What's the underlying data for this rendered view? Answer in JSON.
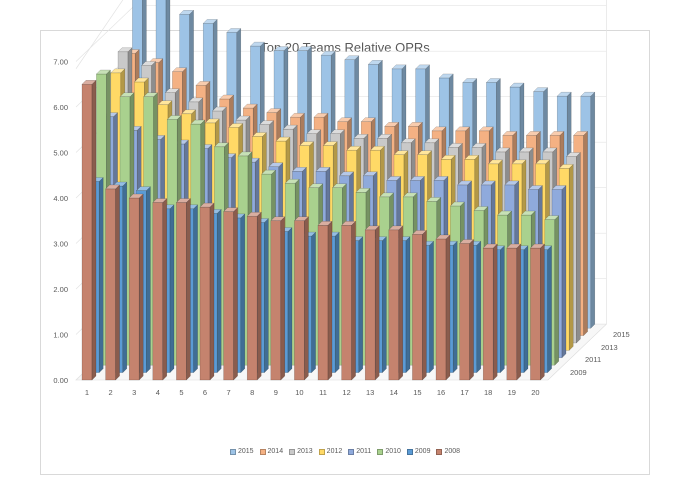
{
  "chart_data": {
    "type": "bar",
    "title": "Top 20 Teams Relative OPRs",
    "categories": [
      "1",
      "2",
      "3",
      "4",
      "5",
      "6",
      "7",
      "8",
      "9",
      "10",
      "11",
      "12",
      "13",
      "14",
      "15",
      "16",
      "17",
      "18",
      "19",
      "20"
    ],
    "y_tick_labels": [
      "0.00",
      "1.00",
      "2.00",
      "3.00",
      "4.00",
      "5.00",
      "6.00",
      "7.00"
    ],
    "ylim": [
      0,
      7.5
    ],
    "depth_axis_labels": [
      "2015",
      "2013",
      "2011",
      "2009"
    ],
    "grid": true,
    "legend_position": "bottom",
    "series": [
      {
        "name": "2015",
        "color": "#9dc3e6",
        "values": [
          7.9,
          7.7,
          6.9,
          6.7,
          6.5,
          6.2,
          6.1,
          6.1,
          6.0,
          5.9,
          5.8,
          5.7,
          5.7,
          5.5,
          5.4,
          5.4,
          5.3,
          5.2,
          5.1,
          5.1
        ]
      },
      {
        "name": "2014",
        "color": "#f4b183",
        "values": [
          6.2,
          6.0,
          5.8,
          5.5,
          5.2,
          5.0,
          4.9,
          4.8,
          4.8,
          4.7,
          4.7,
          4.6,
          4.6,
          4.5,
          4.5,
          4.5,
          4.4,
          4.4,
          4.4,
          4.4
        ]
      },
      {
        "name": "2013",
        "color": "#c9c9c9",
        "values": [
          6.4,
          6.1,
          5.5,
          5.3,
          5.1,
          4.9,
          4.8,
          4.7,
          4.6,
          4.6,
          4.5,
          4.5,
          4.4,
          4.4,
          4.3,
          4.3,
          4.2,
          4.2,
          4.2,
          4.1
        ]
      },
      {
        "name": "2012",
        "color": "#ffd966",
        "values": [
          6.1,
          5.9,
          5.4,
          5.2,
          5.0,
          4.9,
          4.7,
          4.6,
          4.5,
          4.5,
          4.4,
          4.4,
          4.3,
          4.3,
          4.2,
          4.2,
          4.1,
          4.1,
          4.1,
          4.0
        ]
      },
      {
        "name": "2011",
        "color": "#8faadc",
        "values": [
          5.3,
          5.0,
          4.8,
          4.7,
          4.6,
          4.4,
          4.3,
          4.2,
          4.1,
          4.1,
          4.0,
          4.0,
          3.9,
          3.9,
          3.9,
          3.8,
          3.8,
          3.8,
          3.7,
          3.7
        ]
      },
      {
        "name": "2010",
        "color": "#a9d18e",
        "values": [
          6.4,
          5.9,
          5.9,
          5.4,
          5.3,
          4.8,
          4.6,
          4.2,
          4.0,
          3.9,
          3.9,
          3.8,
          3.7,
          3.7,
          3.6,
          3.5,
          3.4,
          3.3,
          3.3,
          3.2
        ]
      },
      {
        "name": "2009",
        "color": "#5b9bd5",
        "values": [
          4.2,
          4.1,
          4.0,
          3.6,
          3.6,
          3.5,
          3.4,
          3.3,
          3.1,
          3.0,
          3.0,
          2.9,
          2.9,
          2.9,
          2.8,
          2.8,
          2.8,
          2.7,
          2.7,
          2.7
        ]
      },
      {
        "name": "2008",
        "color": "#c5836e",
        "values": [
          6.5,
          4.2,
          4.0,
          3.9,
          3.9,
          3.8,
          3.7,
          3.6,
          3.5,
          3.5,
          3.4,
          3.4,
          3.3,
          3.3,
          3.2,
          3.1,
          3.0,
          2.9,
          2.9,
          2.9
        ]
      }
    ]
  }
}
